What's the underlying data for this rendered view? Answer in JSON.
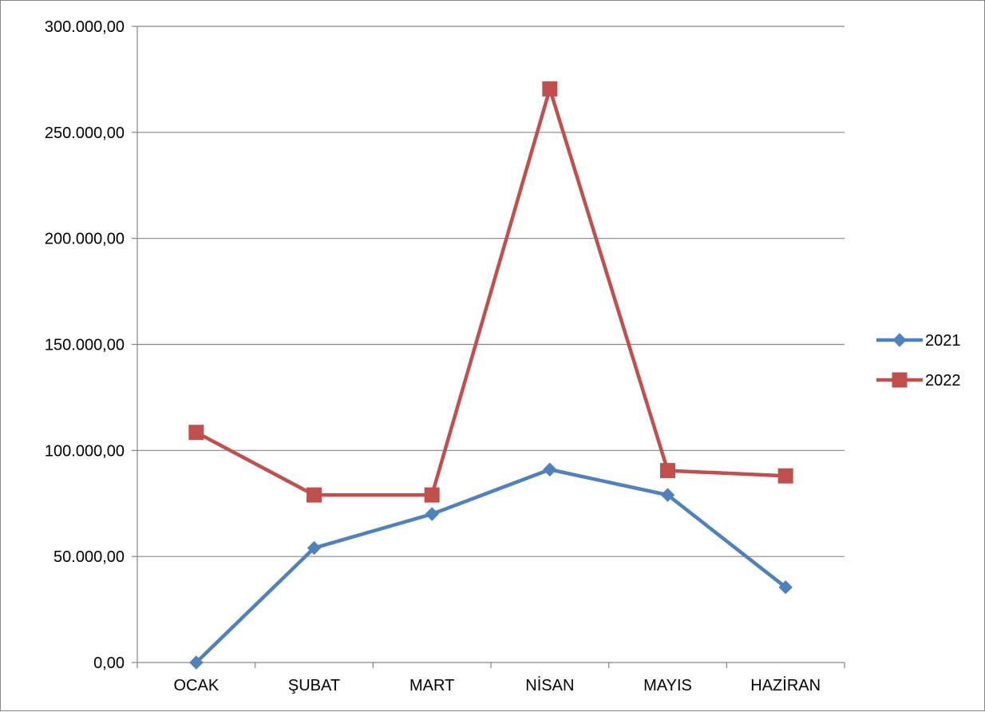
{
  "chart_data": {
    "type": "line",
    "categories": [
      "OCAK",
      "ŞUBAT",
      "MART",
      "NİSAN",
      "MAYIS",
      "HAZİRAN"
    ],
    "series": [
      {
        "name": "2021",
        "color": "#4F81BD",
        "marker": "diamond",
        "values": [
          0,
          54000,
          70000,
          91000,
          79000,
          35500
        ]
      },
      {
        "name": "2022",
        "color": "#C0504D",
        "marker": "square",
        "values": [
          108500,
          79000,
          79000,
          270500,
          90500,
          88000
        ]
      }
    ],
    "yticks": [
      0,
      50000,
      100000,
      150000,
      200000,
      250000,
      300000
    ],
    "ytick_labels": [
      "0,00",
      "50.000,00",
      "100.000,00",
      "150.000,00",
      "200.000,00",
      "250.000,00",
      "300.000,00"
    ],
    "ylim": [
      0,
      300000
    ],
    "grid": true,
    "legend_position": "right",
    "title": "",
    "xlabel": "",
    "ylabel": ""
  }
}
